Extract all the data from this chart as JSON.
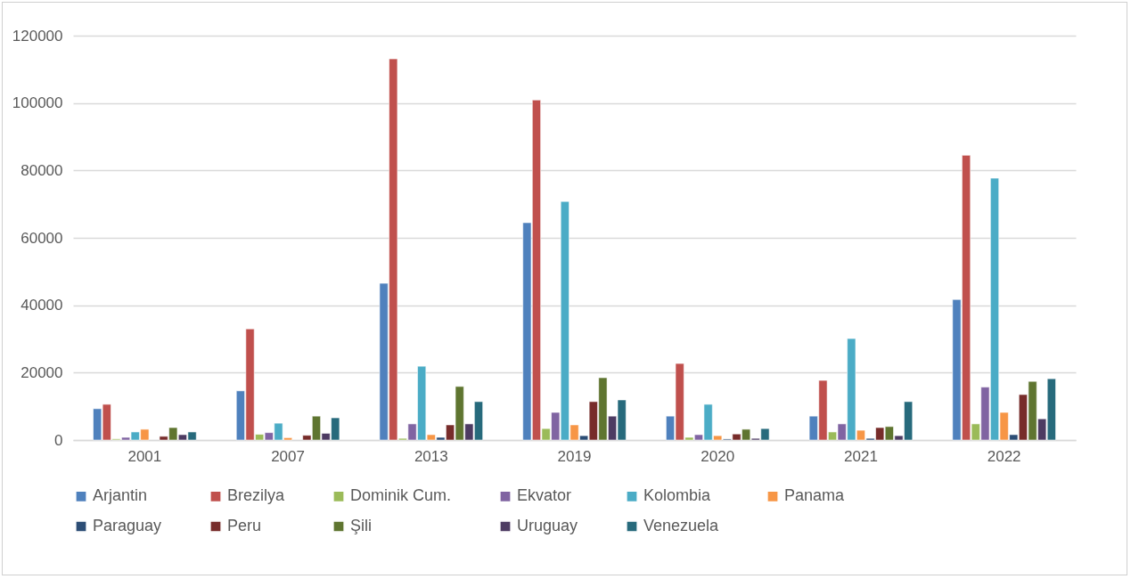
{
  "chart_data": {
    "type": "bar",
    "categories": [
      "2001",
      "2007",
      "2013",
      "2019",
      "2020",
      "2021",
      "2022"
    ],
    "series": [
      {
        "name": "Arjantin",
        "color": "#4f81bd",
        "values": [
          9300,
          14600,
          46500,
          64500,
          7100,
          7100,
          41700
        ]
      },
      {
        "name": "Brezilya",
        "color": "#c0504d",
        "values": [
          10600,
          33000,
          113100,
          100900,
          22700,
          17700,
          84500
        ]
      },
      {
        "name": "Dominik Cum.",
        "color": "#9bbb59",
        "values": [
          300,
          1700,
          500,
          3400,
          800,
          2400,
          4800
        ]
      },
      {
        "name": "Ekvator",
        "color": "#8064a2",
        "values": [
          800,
          2200,
          4800,
          8200,
          1600,
          4800,
          15700
        ]
      },
      {
        "name": "Kolombia",
        "color": "#4bacc6",
        "values": [
          2400,
          5000,
          21900,
          70800,
          10600,
          30100,
          77700
        ]
      },
      {
        "name": "Panama",
        "color": "#f79646",
        "values": [
          3200,
          700,
          1600,
          4500,
          1300,
          2900,
          8200
        ]
      },
      {
        "name": "Paraguay",
        "color": "#2c4d75",
        "values": [
          null,
          null,
          800,
          1300,
          300,
          500,
          1600
        ]
      },
      {
        "name": "Peru",
        "color": "#772c2a",
        "values": [
          1100,
          1400,
          4500,
          11400,
          1800,
          3700,
          13500
        ]
      },
      {
        "name": "Şili",
        "color": "#5f7530",
        "values": [
          3700,
          7100,
          15900,
          18500,
          3200,
          4000,
          17400
        ]
      },
      {
        "name": "Uruguay",
        "color": "#4d3b62",
        "values": [
          1600,
          2000,
          4800,
          7100,
          500,
          1300,
          6300
        ]
      },
      {
        "name": "Venezuela",
        "color": "#276a7c",
        "values": [
          2400,
          6600,
          11400,
          11900,
          3400,
          11400,
          18200
        ]
      }
    ],
    "ylim": [
      0,
      120000
    ],
    "yticks": [
      0,
      20000,
      40000,
      60000,
      80000,
      100000,
      120000
    ],
    "grid": "y",
    "legend": "bottom"
  }
}
